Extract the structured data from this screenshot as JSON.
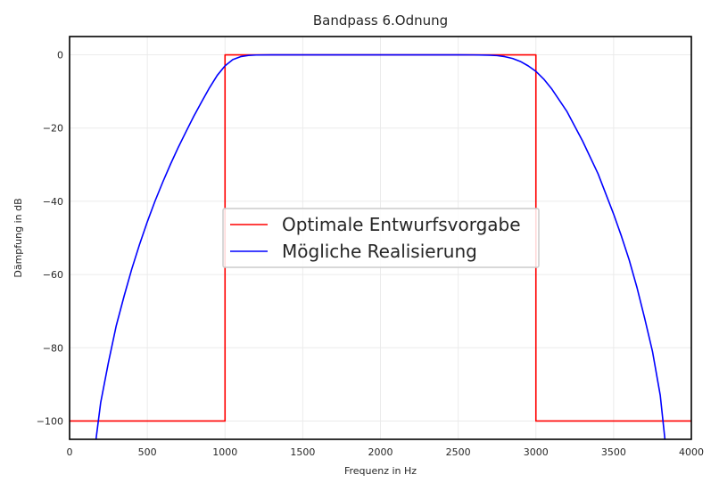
{
  "chart_data": {
    "type": "line",
    "title": "Bandpass 6.Odnung",
    "xlabel": "Frequenz in Hz",
    "ylabel": "Dämpfung in dB",
    "xlim": [
      0,
      4000
    ],
    "ylim": [
      -105,
      5
    ],
    "xticks": [
      0,
      500,
      1000,
      1500,
      2000,
      2500,
      3000,
      3500,
      4000
    ],
    "yticks": [
      0,
      -20,
      -40,
      -60,
      -80,
      -100
    ],
    "grid": true,
    "legend_position": "center",
    "series": [
      {
        "name": "Optimale Entwurfsvorgabe",
        "color": "#ff0000",
        "x": [
          0,
          1000,
          1000,
          3000,
          3000,
          4000
        ],
        "y": [
          -100,
          -100,
          0,
          0,
          -100,
          -100
        ]
      },
      {
        "name": "Mögliche Realisierung",
        "color": "#0000ff",
        "x": [
          170,
          200,
          250,
          300,
          350,
          400,
          450,
          500,
          550,
          600,
          650,
          700,
          750,
          800,
          850,
          900,
          950,
          1000,
          1050,
          1100,
          1150,
          1200,
          1300,
          1400,
          1500,
          2000,
          2500,
          2600,
          2700,
          2750,
          2800,
          2850,
          2900,
          2950,
          3000,
          3050,
          3100,
          3200,
          3300,
          3400,
          3500,
          3550,
          3600,
          3650,
          3700,
          3750,
          3800,
          3830
        ],
        "y": [
          -105,
          -95,
          -84,
          -74,
          -66,
          -58.5,
          -51.8,
          -45.6,
          -39.9,
          -34.7,
          -29.8,
          -25.2,
          -20.9,
          -16.7,
          -12.8,
          -9.0,
          -5.6,
          -3.0,
          -1.3,
          -0.5,
          -0.15,
          -0.05,
          0,
          0,
          0,
          0,
          0,
          -0.02,
          -0.1,
          -0.2,
          -0.5,
          -1.0,
          -1.8,
          -3.0,
          -4.5,
          -6.6,
          -9.2,
          -15.5,
          -23.5,
          -32.5,
          -43.5,
          -49.5,
          -56.0,
          -63.5,
          -72.0,
          -81.0,
          -93.0,
          -105
        ]
      }
    ]
  }
}
